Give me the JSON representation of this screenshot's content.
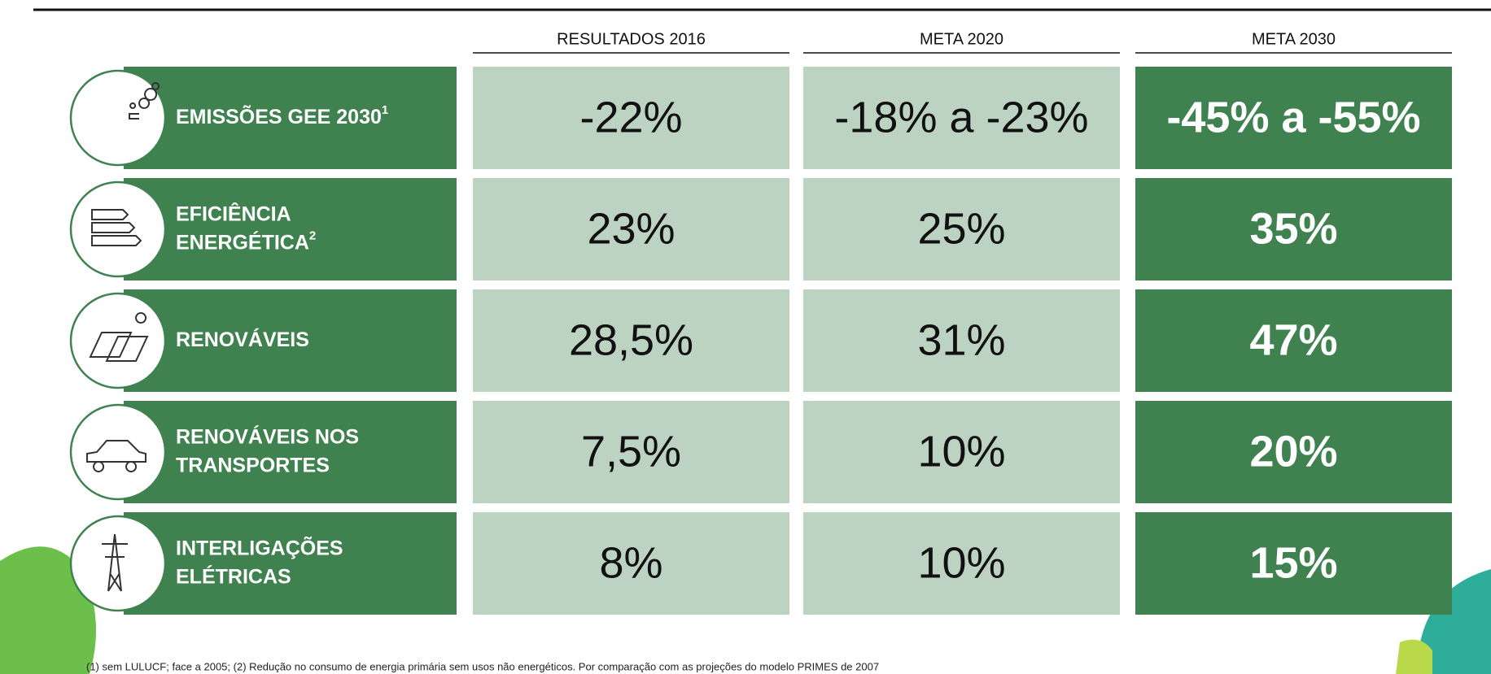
{
  "table": {
    "columns": [
      "RESULTADOS 2016",
      "META 2020",
      "META 2030"
    ],
    "rows": [
      {
        "label": [
          "EMISSÕES GEE 2030"
        ],
        "sup": "1",
        "values": [
          "-22%",
          "-18% a -23%",
          "-45% a -55%"
        ]
      },
      {
        "label": [
          "EFICIÊNCIA",
          "ENERGÉTICA"
        ],
        "sup": "2",
        "values": [
          "23%",
          "25%",
          "35%"
        ]
      },
      {
        "label": [
          "RENOVÁVEIS"
        ],
        "values": [
          "28,5%",
          "31%",
          "47%"
        ]
      },
      {
        "label": [
          "RENOVÁVEIS NOS",
          "TRANSPORTES"
        ],
        "values": [
          "7,5%",
          "10%",
          "20%"
        ]
      },
      {
        "label": [
          "INTERLIGAÇÕES",
          "ELÉTRICAS"
        ],
        "values": [
          "8%",
          "10%",
          "15%"
        ]
      }
    ]
  },
  "footnote": "(1) sem LULUCF; face a 2005; (2) Redução no consumo de energia primária sem usos não energéticos. Por comparação com as projeções do modelo PRIMES de 2007"
}
